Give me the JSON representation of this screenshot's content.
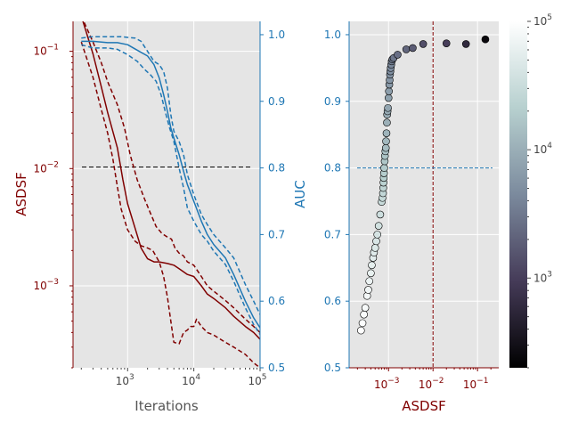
{
  "colors": {
    "dark_red": "#800000",
    "blue": "#1f77b4",
    "plot_bg": "#e5e5e5",
    "grid": "#ffffff",
    "tick_text": "#444444",
    "label_gray": "#555555",
    "black": "#000000"
  },
  "chart_data": [
    {
      "type": "line",
      "x_scale": "log",
      "y_scale": "log",
      "xlabel": "Iterations",
      "ylabel": "ASDSF",
      "ylabel_right": "AUC",
      "xlim": [
        150,
        100000
      ],
      "ylim": [
        0.0002,
        0.18
      ],
      "ylim_right": [
        0.5,
        1.02
      ],
      "x_ticks": [
        1000,
        10000,
        100000
      ],
      "x_tick_labels": [
        "10",
        "10",
        "10"
      ],
      "x_tick_exponents": [
        "3",
        "4",
        "5"
      ],
      "y_ticks": [
        0.001,
        0.01,
        0.1
      ],
      "y_tick_labels": [
        "10",
        "10",
        "10"
      ],
      "y_tick_exponents": [
        "−3",
        "−2",
        "−1"
      ],
      "y_right_ticks": [
        0.5,
        0.6,
        0.7,
        0.8,
        0.9,
        1.0
      ],
      "y_right_tick_labels": [
        "0.5",
        "0.6",
        "0.7",
        "0.8",
        "0.9",
        "1.0"
      ],
      "reference_line": {
        "axis": "left",
        "y": 0.0103,
        "style": "dashed",
        "color": "black"
      },
      "series": [
        {
          "axis": "left",
          "style": "solid",
          "color": "dark_red",
          "points": [
            [
              200,
              0.2
            ],
            [
              300,
              0.095
            ],
            [
              400,
              0.05
            ],
            [
              500,
              0.03
            ],
            [
              700,
              0.015
            ],
            [
              850,
              0.008
            ],
            [
              1000,
              0.005
            ],
            [
              1300,
              0.0031
            ],
            [
              1600,
              0.0021
            ],
            [
              2000,
              0.0017
            ],
            [
              2500,
              0.0016
            ],
            [
              3000,
              0.0016
            ],
            [
              4000,
              0.00155
            ],
            [
              5000,
              0.0015
            ],
            [
              6000,
              0.0014
            ],
            [
              8000,
              0.00125
            ],
            [
              10000,
              0.0012
            ],
            [
              13000,
              0.001
            ],
            [
              16000,
              0.00085
            ],
            [
              20000,
              0.00078
            ],
            [
              30000,
              0.00065
            ],
            [
              40000,
              0.00055
            ],
            [
              60000,
              0.00045
            ],
            [
              80000,
              0.0004
            ],
            [
              100000,
              0.00035
            ]
          ]
        },
        {
          "axis": "left",
          "style": "dashed",
          "color": "dark_red",
          "points": [
            [
              200,
              0.2
            ],
            [
              300,
              0.12
            ],
            [
              400,
              0.08
            ],
            [
              500,
              0.055
            ],
            [
              700,
              0.035
            ],
            [
              900,
              0.022
            ],
            [
              1100,
              0.013
            ],
            [
              1400,
              0.008
            ],
            [
              1800,
              0.0055
            ],
            [
              2200,
              0.0042
            ],
            [
              2700,
              0.0032
            ],
            [
              3300,
              0.0028
            ],
            [
              4000,
              0.0026
            ],
            [
              4600,
              0.0025
            ],
            [
              5200,
              0.0021
            ],
            [
              6000,
              0.0019
            ],
            [
              7000,
              0.0018
            ],
            [
              8000,
              0.0016
            ],
            [
              10000,
              0.0015
            ],
            [
              13000,
              0.0012
            ],
            [
              16000,
              0.001
            ],
            [
              20000,
              0.0009
            ],
            [
              30000,
              0.00075
            ],
            [
              40000,
              0.00065
            ],
            [
              60000,
              0.00052
            ],
            [
              80000,
              0.00045
            ],
            [
              100000,
              0.0004
            ]
          ]
        },
        {
          "axis": "left",
          "style": "dashed",
          "color": "dark_red",
          "points": [
            [
              200,
              0.12
            ],
            [
              300,
              0.06
            ],
            [
              400,
              0.032
            ],
            [
              500,
              0.02
            ],
            [
              600,
              0.012
            ],
            [
              700,
              0.007
            ],
            [
              800,
              0.0045
            ],
            [
              1000,
              0.003
            ],
            [
              1300,
              0.0024
            ],
            [
              1600,
              0.0022
            ],
            [
              2000,
              0.0021
            ],
            [
              2400,
              0.002
            ],
            [
              3000,
              0.0016
            ],
            [
              3500,
              0.0012
            ],
            [
              4000,
              0.0008
            ],
            [
              4500,
              0.0005
            ],
            [
              5000,
              0.00033
            ],
            [
              6000,
              0.00032
            ],
            [
              7000,
              0.0004
            ],
            [
              8000,
              0.00042
            ],
            [
              9000,
              0.00045
            ],
            [
              10000,
              0.00045
            ],
            [
              11000,
              0.00052
            ],
            [
              13000,
              0.00045
            ],
            [
              16000,
              0.0004
            ],
            [
              20000,
              0.00038
            ],
            [
              30000,
              0.00033
            ],
            [
              40000,
              0.0003
            ],
            [
              60000,
              0.00026
            ],
            [
              80000,
              0.00022
            ],
            [
              100000,
              0.0002
            ]
          ]
        },
        {
          "axis": "right",
          "style": "solid",
          "color": "blue",
          "points": [
            [
              200,
              0.99
            ],
            [
              300,
              0.99
            ],
            [
              500,
              0.988
            ],
            [
              700,
              0.988
            ],
            [
              1000,
              0.985
            ],
            [
              1500,
              0.975
            ],
            [
              2000,
              0.968
            ],
            [
              2500,
              0.955
            ],
            [
              3000,
              0.935
            ],
            [
              3500,
              0.91
            ],
            [
              4000,
              0.885
            ],
            [
              4500,
              0.86
            ],
            [
              5000,
              0.845
            ],
            [
              6000,
              0.82
            ],
            [
              7000,
              0.795
            ],
            [
              8000,
              0.775
            ],
            [
              10000,
              0.75
            ],
            [
              13000,
              0.72
            ],
            [
              16000,
              0.7
            ],
            [
              20000,
              0.685
            ],
            [
              30000,
              0.665
            ],
            [
              40000,
              0.64
            ],
            [
              60000,
              0.6
            ],
            [
              80000,
              0.575
            ],
            [
              100000,
              0.56
            ]
          ]
        },
        {
          "axis": "right",
          "style": "dashed",
          "color": "blue",
          "points": [
            [
              200,
              0.995
            ],
            [
              300,
              0.997
            ],
            [
              500,
              0.997
            ],
            [
              800,
              0.997
            ],
            [
              1000,
              0.996
            ],
            [
              1300,
              0.995
            ],
            [
              1600,
              0.99
            ],
            [
              2000,
              0.975
            ],
            [
              2500,
              0.96
            ],
            [
              3000,
              0.955
            ],
            [
              3500,
              0.945
            ],
            [
              4000,
              0.92
            ],
            [
              4500,
              0.88
            ],
            [
              5000,
              0.855
            ],
            [
              6000,
              0.84
            ],
            [
              7000,
              0.82
            ],
            [
              8000,
              0.79
            ],
            [
              10000,
              0.76
            ],
            [
              13000,
              0.73
            ],
            [
              16000,
              0.715
            ],
            [
              20000,
              0.7
            ],
            [
              30000,
              0.68
            ],
            [
              40000,
              0.665
            ],
            [
              60000,
              0.625
            ],
            [
              80000,
              0.6
            ],
            [
              100000,
              0.58
            ]
          ]
        },
        {
          "axis": "right",
          "style": "dashed",
          "color": "blue",
          "points": [
            [
              200,
              0.985
            ],
            [
              300,
              0.98
            ],
            [
              500,
              0.98
            ],
            [
              700,
              0.978
            ],
            [
              1000,
              0.97
            ],
            [
              1400,
              0.96
            ],
            [
              1800,
              0.948
            ],
            [
              2200,
              0.94
            ],
            [
              2700,
              0.93
            ],
            [
              3200,
              0.91
            ],
            [
              3800,
              0.88
            ],
            [
              4300,
              0.86
            ],
            [
              5000,
              0.84
            ],
            [
              6000,
              0.8
            ],
            [
              7000,
              0.77
            ],
            [
              8000,
              0.74
            ],
            [
              10000,
              0.72
            ],
            [
              13000,
              0.7
            ],
            [
              16000,
              0.69
            ],
            [
              20000,
              0.675
            ],
            [
              30000,
              0.655
            ],
            [
              40000,
              0.63
            ],
            [
              60000,
              0.59
            ],
            [
              80000,
              0.565
            ],
            [
              100000,
              0.55
            ]
          ]
        }
      ]
    },
    {
      "type": "scatter",
      "x_scale": "log",
      "xlabel": "ASDSF",
      "xlim": [
        0.00013,
        0.3
      ],
      "ylim": [
        0.5,
        1.02
      ],
      "x_ticks": [
        0.001,
        0.01,
        0.1
      ],
      "x_tick_labels": [
        "10",
        "10",
        "10"
      ],
      "x_tick_exponents": [
        "−3",
        "−2",
        "−1"
      ],
      "y_ticks": [
        0.5,
        0.6,
        0.7,
        0.8,
        0.9,
        1.0
      ],
      "y_tick_labels": [
        "0.5",
        "0.6",
        "0.7",
        "0.8",
        "0.9",
        "1.0"
      ],
      "reference_lines": [
        {
          "orientation": "vertical",
          "x": 0.01,
          "style": "dashed",
          "color": "dark_red"
        },
        {
          "orientation": "horizontal",
          "y": 0.8,
          "style": "dashed",
          "color": "blue"
        }
      ],
      "colorbar": {
        "scale": "log",
        "range": [
          200,
          100000
        ],
        "ticks": [
          1000,
          10000,
          100000
        ],
        "tick_labels": [
          "10",
          "10",
          "10"
        ],
        "tick_exponents": [
          "3",
          "4",
          "5"
        ],
        "colormap": [
          "#000000",
          "#453b58",
          "#7b8a9d",
          "#b7d0cf",
          "#ffffff"
        ]
      },
      "points": [
        {
          "x": 0.00024,
          "y": 0.556,
          "c": 100000
        },
        {
          "x": 0.00026,
          "y": 0.567,
          "c": 93000
        },
        {
          "x": 0.00028,
          "y": 0.58,
          "c": 87000
        },
        {
          "x": 0.0003,
          "y": 0.59,
          "c": 82000
        },
        {
          "x": 0.00033,
          "y": 0.608,
          "c": 77000
        },
        {
          "x": 0.00035,
          "y": 0.617,
          "c": 72000
        },
        {
          "x": 0.00037,
          "y": 0.63,
          "c": 67000
        },
        {
          "x": 0.0004,
          "y": 0.642,
          "c": 62000
        },
        {
          "x": 0.00042,
          "y": 0.654,
          "c": 58000
        },
        {
          "x": 0.00045,
          "y": 0.665,
          "c": 54000
        },
        {
          "x": 0.00047,
          "y": 0.673,
          "c": 50000
        },
        {
          "x": 0.0005,
          "y": 0.68,
          "c": 46000
        },
        {
          "x": 0.00053,
          "y": 0.69,
          "c": 43000
        },
        {
          "x": 0.00056,
          "y": 0.7,
          "c": 40000
        },
        {
          "x": 0.0006,
          "y": 0.713,
          "c": 37000
        },
        {
          "x": 0.00065,
          "y": 0.73,
          "c": 34000
        },
        {
          "x": 0.0007,
          "y": 0.749,
          "c": 31000
        },
        {
          "x": 0.00073,
          "y": 0.755,
          "c": 29000
        },
        {
          "x": 0.00075,
          "y": 0.762,
          "c": 27000
        },
        {
          "x": 0.00076,
          "y": 0.77,
          "c": 25000
        },
        {
          "x": 0.00077,
          "y": 0.778,
          "c": 23000
        },
        {
          "x": 0.00078,
          "y": 0.785,
          "c": 21500
        },
        {
          "x": 0.00079,
          "y": 0.792,
          "c": 20000
        },
        {
          "x": 0.0008,
          "y": 0.8,
          "c": 18500
        },
        {
          "x": 0.00082,
          "y": 0.81,
          "c": 17000
        },
        {
          "x": 0.00083,
          "y": 0.818,
          "c": 15700
        },
        {
          "x": 0.00085,
          "y": 0.825,
          "c": 14500
        },
        {
          "x": 0.00087,
          "y": 0.83,
          "c": 13400
        },
        {
          "x": 0.00088,
          "y": 0.84,
          "c": 12400
        },
        {
          "x": 0.0009,
          "y": 0.852,
          "c": 11400
        },
        {
          "x": 0.00092,
          "y": 0.868,
          "c": 10500
        },
        {
          "x": 0.00093,
          "y": 0.88,
          "c": 9700
        },
        {
          "x": 0.00095,
          "y": 0.885,
          "c": 9000
        },
        {
          "x": 0.00097,
          "y": 0.89,
          "c": 8300
        },
        {
          "x": 0.001,
          "y": 0.905,
          "c": 7600
        },
        {
          "x": 0.00102,
          "y": 0.915,
          "c": 7000
        },
        {
          "x": 0.00104,
          "y": 0.925,
          "c": 6400
        },
        {
          "x": 0.00106,
          "y": 0.932,
          "c": 5900
        },
        {
          "x": 0.00108,
          "y": 0.94,
          "c": 5400
        },
        {
          "x": 0.0011,
          "y": 0.945,
          "c": 5000
        },
        {
          "x": 0.00112,
          "y": 0.95,
          "c": 4600
        },
        {
          "x": 0.00115,
          "y": 0.955,
          "c": 4200
        },
        {
          "x": 0.00118,
          "y": 0.96,
          "c": 3800
        },
        {
          "x": 0.00122,
          "y": 0.963,
          "c": 3400
        },
        {
          "x": 0.0013,
          "y": 0.965,
          "c": 3000
        },
        {
          "x": 0.0016,
          "y": 0.97,
          "c": 2600
        },
        {
          "x": 0.0025,
          "y": 0.978,
          "c": 2200
        },
        {
          "x": 0.0035,
          "y": 0.98,
          "c": 1800
        },
        {
          "x": 0.006,
          "y": 0.986,
          "c": 1400
        },
        {
          "x": 0.02,
          "y": 0.987,
          "c": 1000
        },
        {
          "x": 0.055,
          "y": 0.986,
          "c": 600
        },
        {
          "x": 0.15,
          "y": 0.993,
          "c": 250
        }
      ]
    }
  ]
}
